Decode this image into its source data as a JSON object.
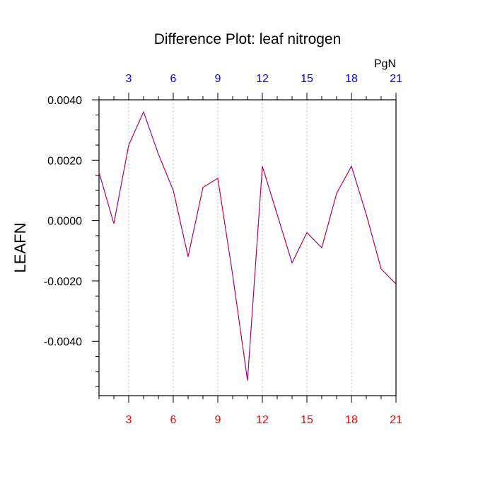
{
  "chart_data": {
    "type": "line",
    "title": "Difference Plot: leaf nitrogen",
    "ylabel": "LEAFN",
    "units_label": "PgN",
    "xlim": [
      1,
      21
    ],
    "ylim": [
      -0.0058,
      0.004
    ],
    "x_ticks": [
      3,
      6,
      9,
      12,
      15,
      18,
      21
    ],
    "x_tick_labels": [
      "3",
      "6",
      "9",
      "12",
      "15",
      "18",
      "21"
    ],
    "x_minor_ticks": [
      1,
      2,
      4,
      5,
      7,
      8,
      10,
      11,
      13,
      14,
      16,
      17,
      19,
      20
    ],
    "y_ticks": [
      0.004,
      0.002,
      0.0,
      -0.002,
      -0.004
    ],
    "y_tick_labels": [
      "0.0040",
      "0.0020",
      "0.0000",
      "-0.0020",
      "-0.0040"
    ],
    "y_minor_ticks": [
      0.0035,
      0.003,
      0.0025,
      0.0015,
      0.001,
      0.0005,
      -0.0005,
      -0.001,
      -0.0015,
      -0.0025,
      -0.003,
      -0.0035,
      -0.0045,
      -0.005,
      -0.0055
    ],
    "vertical_gridlines": true,
    "series": [
      {
        "x": [
          1,
          2,
          3,
          4,
          5,
          6,
          7,
          8,
          9,
          10,
          11,
          12,
          13,
          14,
          15,
          16,
          17,
          18,
          19,
          20,
          21
        ],
        "y": [
          0.0016,
          -0.0001,
          0.0025,
          0.0036,
          0.0022,
          0.001,
          -0.0012,
          0.0011,
          0.0014,
          -0.0018,
          -0.0053,
          0.0018,
          0.0002,
          -0.0014,
          -0.0004,
          -0.0009,
          0.0009,
          0.0018,
          0.0002,
          -0.0016,
          -0.0021
        ],
        "color": "#6600cc",
        "dash_color": "#ff0000",
        "line_style": "dashed"
      }
    ],
    "colors": {
      "bottom_tick_labels": "#ff0000",
      "top_tick_labels": "#0000ff",
      "axes": "#000000",
      "grid": "#bbbbbb"
    }
  }
}
